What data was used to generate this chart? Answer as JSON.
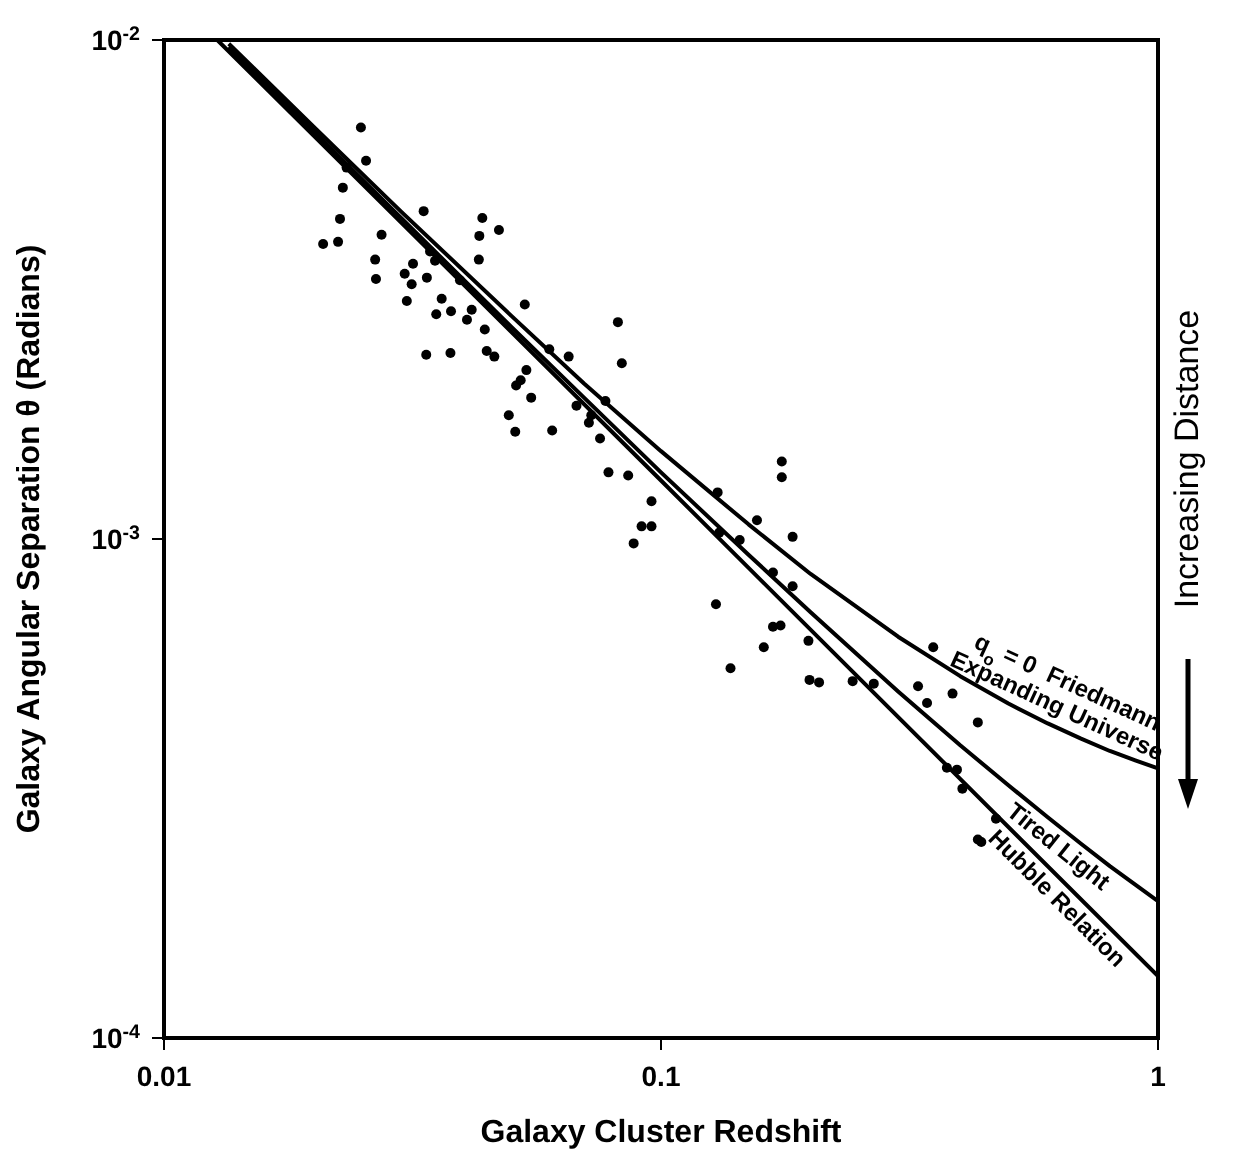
{
  "chart_data": {
    "type": "scatter",
    "xlabel": "Galaxy Cluster Redshift",
    "ylabel": "Galaxy  Angular  Separation    θ    (Radians)",
    "log": "xy",
    "xlim": [
      0.01,
      1
    ],
    "ylim": [
      0.0001,
      0.01
    ],
    "xticks": [
      0.01,
      0.1,
      1
    ],
    "yticks": [
      {
        "value": 0.0001,
        "label": "10$^{-4}$"
      },
      {
        "value": 0.001,
        "label": "10$^{-3}$"
      },
      {
        "value": 0.01,
        "label": "10$^{-2}$"
      }
    ],
    "grid": false,
    "legend": false,
    "annotations": [
      "Increasing Distance"
    ],
    "series": [
      {
        "type": "scatter",
        "marker": "circle",
        "color": "#000000",
        "x": [
          0.0209,
          0.0224,
          0.0226,
          0.0229,
          0.0233,
          0.0249,
          0.0255,
          0.0266,
          0.0267,
          0.0274,
          0.0305,
          0.0308,
          0.0315,
          0.0317,
          0.0333,
          0.0337,
          0.0338,
          0.0343,
          0.0351,
          0.0353,
          0.0362,
          0.0377,
          0.0378,
          0.0394,
          0.0407,
          0.0416,
          0.043,
          0.0431,
          0.0437,
          0.0442,
          0.0446,
          0.0462,
          0.0472,
          0.0494,
          0.0509,
          0.0511,
          0.0522,
          0.0532,
          0.0536,
          0.0548,
          0.0596,
          0.0604,
          0.0652,
          0.0676,
          0.0716,
          0.0724,
          0.0754,
          0.0773,
          0.0784,
          0.0819,
          0.0834,
          0.0859,
          0.0881,
          0.0914,
          0.0957,
          0.0957,
          0.13,
          0.129,
          0.131,
          0.138,
          0.144,
          0.156,
          0.161,
          0.168,
          0.168,
          0.174,
          0.175,
          0.175,
          0.184,
          0.184,
          0.198,
          0.199,
          0.208,
          0.243,
          0.268,
          0.329,
          0.343,
          0.353,
          0.386,
          0.376,
          0.394,
          0.404,
          0.434,
          0.434,
          0.441,
          0.472
        ],
        "values": [
          0.0039,
          0.00394,
          0.00438,
          0.00506,
          0.00555,
          0.00668,
          0.00573,
          0.00363,
          0.00332,
          0.00407,
          0.0034,
          0.003,
          0.00324,
          0.00356,
          0.00454,
          0.00234,
          0.00334,
          0.00377,
          0.00361,
          0.00282,
          0.00303,
          0.00236,
          0.00286,
          0.0033,
          0.00275,
          0.00288,
          0.00363,
          0.00405,
          0.0044,
          0.00263,
          0.00238,
          0.00232,
          0.00416,
          0.00177,
          0.00164,
          0.00203,
          0.00208,
          0.00295,
          0.00218,
          0.00192,
          0.0024,
          0.00165,
          0.00232,
          0.00185,
          0.00171,
          0.00177,
          0.00159,
          0.00189,
          0.00136,
          0.00272,
          0.00225,
          0.00134,
          0.00098,
          0.00106,
          0.00106,
          0.00119,
          0.00124,
          0.00074,
          0.00103,
          0.000551,
          0.000995,
          0.00109,
          0.000607,
          0.000857,
          0.000667,
          0.000671,
          0.00143,
          0.00133,
          0.00101,
          0.000804,
          0.000625,
          0.000522,
          0.000516,
          0.000519,
          0.000513,
          0.000507,
          0.000469,
          0.000607,
          0.00049,
          0.000348,
          0.000345,
          0.000316,
          0.000429,
          0.00025,
          0.000247,
          0.000275
        ]
      },
      {
        "type": "line",
        "marker": "none",
        "name": "q$_{o}$ = 0  Friedmann Expanding Universe",
        "color": "#000000",
        "x": [
          0.0135,
          0.02,
          0.03,
          0.05,
          0.07,
          0.1,
          0.15,
          0.2,
          0.3,
          0.4,
          0.5,
          0.6,
          0.7,
          0.8,
          0.9,
          1
        ],
        "values": [
          0.00983,
          0.0067,
          0.00453,
          0.0028,
          0.00205,
          0.0015,
          0.00107,
          0.000851,
          0.000637,
          0.000531,
          0.000468,
          0.000427,
          0.000398,
          0.000376,
          0.00036,
          0.000347
        ]
      },
      {
        "type": "line",
        "marker": "none",
        "name": "Tired Light",
        "color": "#000000",
        "x": [
          0.0135,
          0.02,
          0.03,
          0.05,
          0.07,
          0.1,
          0.15,
          0.2,
          0.3,
          0.4,
          0.5,
          0.6,
          0.7,
          0.8,
          0.9,
          1
        ],
        "values": [
          0.00969,
          0.00656,
          0.0044,
          0.00266,
          0.00192,
          0.00136,
          0.00093,
          0.000713,
          0.000495,
          0.000386,
          0.000321,
          0.000277,
          0.000245,
          0.000221,
          0.000203,
          0.000188
        ]
      },
      {
        "type": "line",
        "marker": "none",
        "name": "Hubble Relation",
        "color": "#000000",
        "x": [
          0.0128,
          0.1,
          1
        ],
        "values": [
          0.01,
          0.00131,
          0.000133
        ]
      }
    ]
  }
}
